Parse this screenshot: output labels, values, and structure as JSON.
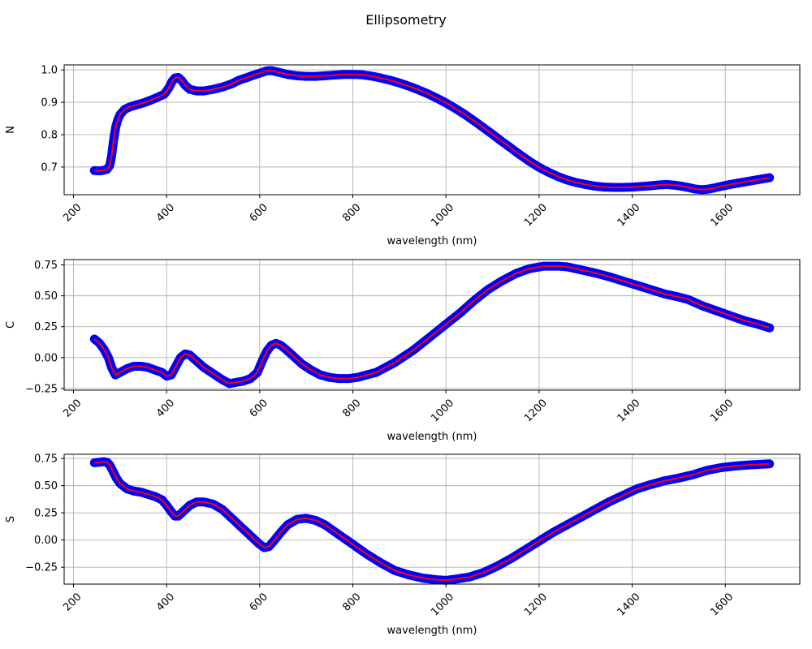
{
  "figure": {
    "title": "Ellipsometry"
  },
  "style": {
    "marker_color": "#0000ff",
    "line_color": "#ff0000",
    "grid_color": "#b0b0b0"
  },
  "chart_data": [
    {
      "type": "line",
      "title": "",
      "xlabel": "wavelength (nm)",
      "ylabel": "N",
      "xlim": [
        180,
        1760
      ],
      "ylim": [
        0.6145,
        1.0155
      ],
      "xticks": [
        200,
        400,
        600,
        800,
        1000,
        1200,
        1400,
        1600
      ],
      "xtick_labels": [
        "200",
        "400",
        "600",
        "800",
        "1000",
        "1200",
        "1400",
        "1600"
      ],
      "yticks": [
        0.7,
        0.8,
        0.9,
        1.0
      ],
      "ytick_labels": [
        "0.7",
        "0.8",
        "0.9",
        "1.0"
      ],
      "grid": true,
      "series": [
        {
          "style": "measured points (blue) with fitted line (red)",
          "x": [
            245,
            255,
            265,
            272,
            278,
            282,
            285,
            288,
            291,
            295,
            300,
            310,
            320,
            335,
            350,
            365,
            380,
            395,
            405,
            412,
            418,
            425,
            432,
            440,
            450,
            465,
            480,
            500,
            520,
            540,
            555,
            570,
            585,
            600,
            615,
            625,
            640,
            660,
            680,
            700,
            720,
            740,
            760,
            780,
            800,
            820,
            840,
            860,
            880,
            900,
            920,
            940,
            960,
            980,
            1000,
            1020,
            1040,
            1060,
            1080,
            1100,
            1120,
            1140,
            1160,
            1180,
            1200,
            1220,
            1240,
            1260,
            1280,
            1300,
            1320,
            1340,
            1360,
            1380,
            1400,
            1420,
            1440,
            1460,
            1475,
            1490,
            1505,
            1520,
            1535,
            1550,
            1560,
            1575,
            1590,
            1610,
            1630,
            1650,
            1670,
            1695
          ],
          "y": [
            0.689,
            0.688,
            0.69,
            0.693,
            0.705,
            0.735,
            0.77,
            0.8,
            0.825,
            0.845,
            0.862,
            0.878,
            0.885,
            0.892,
            0.898,
            0.906,
            0.915,
            0.925,
            0.945,
            0.965,
            0.975,
            0.977,
            0.968,
            0.952,
            0.94,
            0.935,
            0.935,
            0.94,
            0.947,
            0.957,
            0.968,
            0.975,
            0.983,
            0.99,
            0.997,
            0.998,
            0.993,
            0.986,
            0.982,
            0.98,
            0.98,
            0.982,
            0.984,
            0.986,
            0.986,
            0.985,
            0.981,
            0.975,
            0.968,
            0.96,
            0.95,
            0.939,
            0.927,
            0.913,
            0.898,
            0.881,
            0.863,
            0.843,
            0.822,
            0.801,
            0.779,
            0.758,
            0.737,
            0.717,
            0.699,
            0.684,
            0.671,
            0.66,
            0.652,
            0.646,
            0.641,
            0.638,
            0.637,
            0.637,
            0.638,
            0.64,
            0.642,
            0.645,
            0.646,
            0.644,
            0.641,
            0.637,
            0.632,
            0.63,
            0.631,
            0.635,
            0.64,
            0.646,
            0.651,
            0.656,
            0.661,
            0.667
          ]
        }
      ]
    },
    {
      "type": "line",
      "title": "",
      "xlabel": "wavelength (nm)",
      "ylabel": "C",
      "xlim": [
        180,
        1760
      ],
      "ylim": [
        -0.264,
        0.793
      ],
      "xticks": [
        200,
        400,
        600,
        800,
        1000,
        1200,
        1400,
        1600
      ],
      "xtick_labels": [
        "200",
        "400",
        "600",
        "800",
        "1000",
        "1200",
        "1400",
        "1600"
      ],
      "yticks": [
        -0.25,
        0.0,
        0.25,
        0.5,
        0.75
      ],
      "ytick_labels": [
        "−0.25",
        "0.00",
        "0.25",
        "0.50",
        "0.75"
      ],
      "grid": true,
      "series": [
        {
          "style": "measured points (blue) with fitted line (red)",
          "x": [
            245,
            255,
            265,
            275,
            282,
            290,
            300,
            315,
            330,
            345,
            360,
            375,
            390,
            400,
            410,
            420,
            430,
            440,
            450,
            465,
            480,
            500,
            520,
            535,
            550,
            565,
            580,
            595,
            605,
            615,
            625,
            635,
            645,
            655,
            670,
            690,
            710,
            730,
            750,
            770,
            790,
            810,
            830,
            850,
            870,
            890,
            910,
            930,
            950,
            970,
            1000,
            1030,
            1060,
            1090,
            1120,
            1150,
            1180,
            1210,
            1240,
            1260,
            1290,
            1320,
            1350,
            1380,
            1410,
            1440,
            1470,
            1500,
            1520,
            1550,
            1580,
            1610,
            1640,
            1670,
            1695
          ],
          "y": [
            0.15,
            0.12,
            0.07,
            0.0,
            -0.08,
            -0.14,
            -0.12,
            -0.09,
            -0.07,
            -0.07,
            -0.08,
            -0.1,
            -0.12,
            -0.15,
            -0.14,
            -0.07,
            0.0,
            0.03,
            0.02,
            -0.03,
            -0.08,
            -0.13,
            -0.18,
            -0.21,
            -0.2,
            -0.19,
            -0.17,
            -0.12,
            -0.03,
            0.05,
            0.1,
            0.115,
            0.1,
            0.07,
            0.02,
            -0.05,
            -0.1,
            -0.14,
            -0.16,
            -0.17,
            -0.17,
            -0.16,
            -0.14,
            -0.12,
            -0.08,
            -0.04,
            0.01,
            0.06,
            0.12,
            0.18,
            0.27,
            0.36,
            0.46,
            0.55,
            0.62,
            0.68,
            0.72,
            0.74,
            0.74,
            0.735,
            0.71,
            0.685,
            0.655,
            0.62,
            0.585,
            0.55,
            0.515,
            0.49,
            0.47,
            0.42,
            0.38,
            0.34,
            0.3,
            0.27,
            0.24
          ]
        }
      ]
    },
    {
      "type": "line",
      "title": "",
      "xlabel": "wavelength (nm)",
      "ylabel": "S",
      "xlim": [
        180,
        1760
      ],
      "ylim": [
        -0.405,
        0.788
      ],
      "xticks": [
        200,
        400,
        600,
        800,
        1000,
        1200,
        1400,
        1600
      ],
      "xtick_labels": [
        "200",
        "400",
        "600",
        "800",
        "1000",
        "1200",
        "1400",
        "1600"
      ],
      "yticks": [
        -0.25,
        0.0,
        0.25,
        0.5,
        0.75
      ],
      "ytick_labels": [
        "−0.25",
        "0.00",
        "0.25",
        "0.50",
        "0.75"
      ],
      "grid": true,
      "series": [
        {
          "style": "measured points (blue) with fitted line (red)",
          "x": [
            245,
            255,
            265,
            272,
            278,
            285,
            292,
            300,
            315,
            330,
            345,
            360,
            375,
            390,
            400,
            410,
            418,
            425,
            435,
            450,
            465,
            480,
            500,
            520,
            540,
            560,
            580,
            600,
            610,
            620,
            630,
            645,
            660,
            680,
            700,
            720,
            740,
            760,
            780,
            800,
            830,
            860,
            890,
            920,
            950,
            980,
            1000,
            1020,
            1050,
            1080,
            1110,
            1140,
            1170,
            1200,
            1230,
            1260,
            1290,
            1320,
            1350,
            1380,
            1410,
            1440,
            1470,
            1500,
            1530,
            1560,
            1590,
            1620,
            1650,
            1695
          ],
          "y": [
            0.71,
            0.715,
            0.72,
            0.715,
            0.69,
            0.63,
            0.57,
            0.52,
            0.47,
            0.45,
            0.44,
            0.42,
            0.4,
            0.37,
            0.32,
            0.26,
            0.22,
            0.22,
            0.26,
            0.32,
            0.35,
            0.35,
            0.33,
            0.28,
            0.2,
            0.12,
            0.04,
            -0.04,
            -0.07,
            -0.06,
            -0.01,
            0.07,
            0.14,
            0.19,
            0.2,
            0.18,
            0.14,
            0.08,
            0.02,
            -0.04,
            -0.13,
            -0.21,
            -0.28,
            -0.32,
            -0.35,
            -0.365,
            -0.37,
            -0.36,
            -0.34,
            -0.3,
            -0.24,
            -0.17,
            -0.09,
            -0.01,
            0.07,
            0.14,
            0.21,
            0.28,
            0.35,
            0.41,
            0.47,
            0.51,
            0.545,
            0.57,
            0.6,
            0.64,
            0.665,
            0.68,
            0.69,
            0.7
          ]
        }
      ]
    }
  ]
}
